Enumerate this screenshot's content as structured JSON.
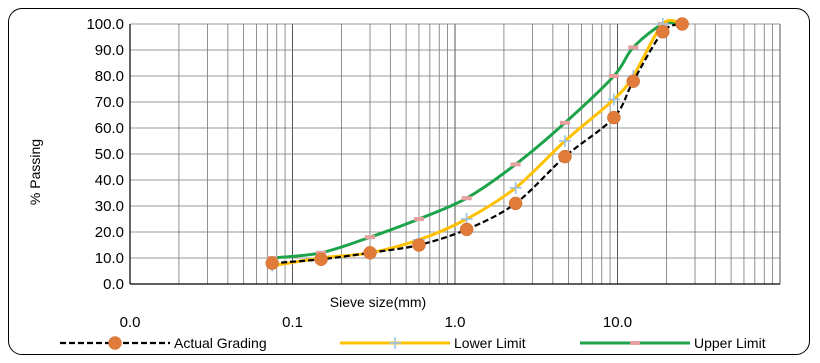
{
  "chart_data": {
    "type": "line",
    "xlabel": "Sieve size(mm)",
    "ylabel": "% Passing",
    "x_scale": "log",
    "xlim": [
      0.01,
      100
    ],
    "ylim": [
      0,
      100
    ],
    "x_ticks": [
      0.01,
      0.1,
      1,
      10
    ],
    "x_tick_labels": [
      "0.0",
      "0.1",
      "1.0",
      "10.0"
    ],
    "y_ticks": [
      0,
      10,
      20,
      30,
      40,
      50,
      60,
      70,
      80,
      90,
      100
    ],
    "y_tick_labels": [
      "0.0",
      "10.0",
      "20.0",
      "30.0",
      "40.0",
      "50.0",
      "60.0",
      "70.0",
      "80.0",
      "90.0",
      "100.0"
    ],
    "grid": true,
    "legend_position": "bottom",
    "series": [
      {
        "name": "Actual Grading",
        "color": "#000000",
        "marker_color": "#e07b39",
        "x": [
          0.075,
          0.15,
          0.3,
          0.6,
          1.18,
          2.36,
          4.75,
          9.5,
          12.5,
          19,
          25
        ],
        "y": [
          8,
          9.5,
          12,
          15,
          21,
          31,
          49,
          64,
          78,
          97,
          100
        ]
      },
      {
        "name": "Lower Limit",
        "color": "#ffc000",
        "marker_color": "#9dc3e6",
        "x": [
          0.075,
          0.15,
          0.3,
          0.6,
          1.18,
          2.36,
          4.75,
          9.5,
          12.5,
          19,
          25
        ],
        "y": [
          7,
          10,
          12,
          17,
          25,
          37,
          55,
          71,
          80,
          100,
          100
        ]
      },
      {
        "name": "Upper Limit",
        "color": "#1fa34a",
        "marker_color": "#e6a0a0",
        "x": [
          0.075,
          0.15,
          0.3,
          0.6,
          1.18,
          2.36,
          4.75,
          9.5,
          12.5,
          19,
          25
        ],
        "y": [
          10,
          12,
          18,
          25,
          33,
          46,
          62,
          80,
          91,
          100,
          100
        ]
      }
    ]
  }
}
